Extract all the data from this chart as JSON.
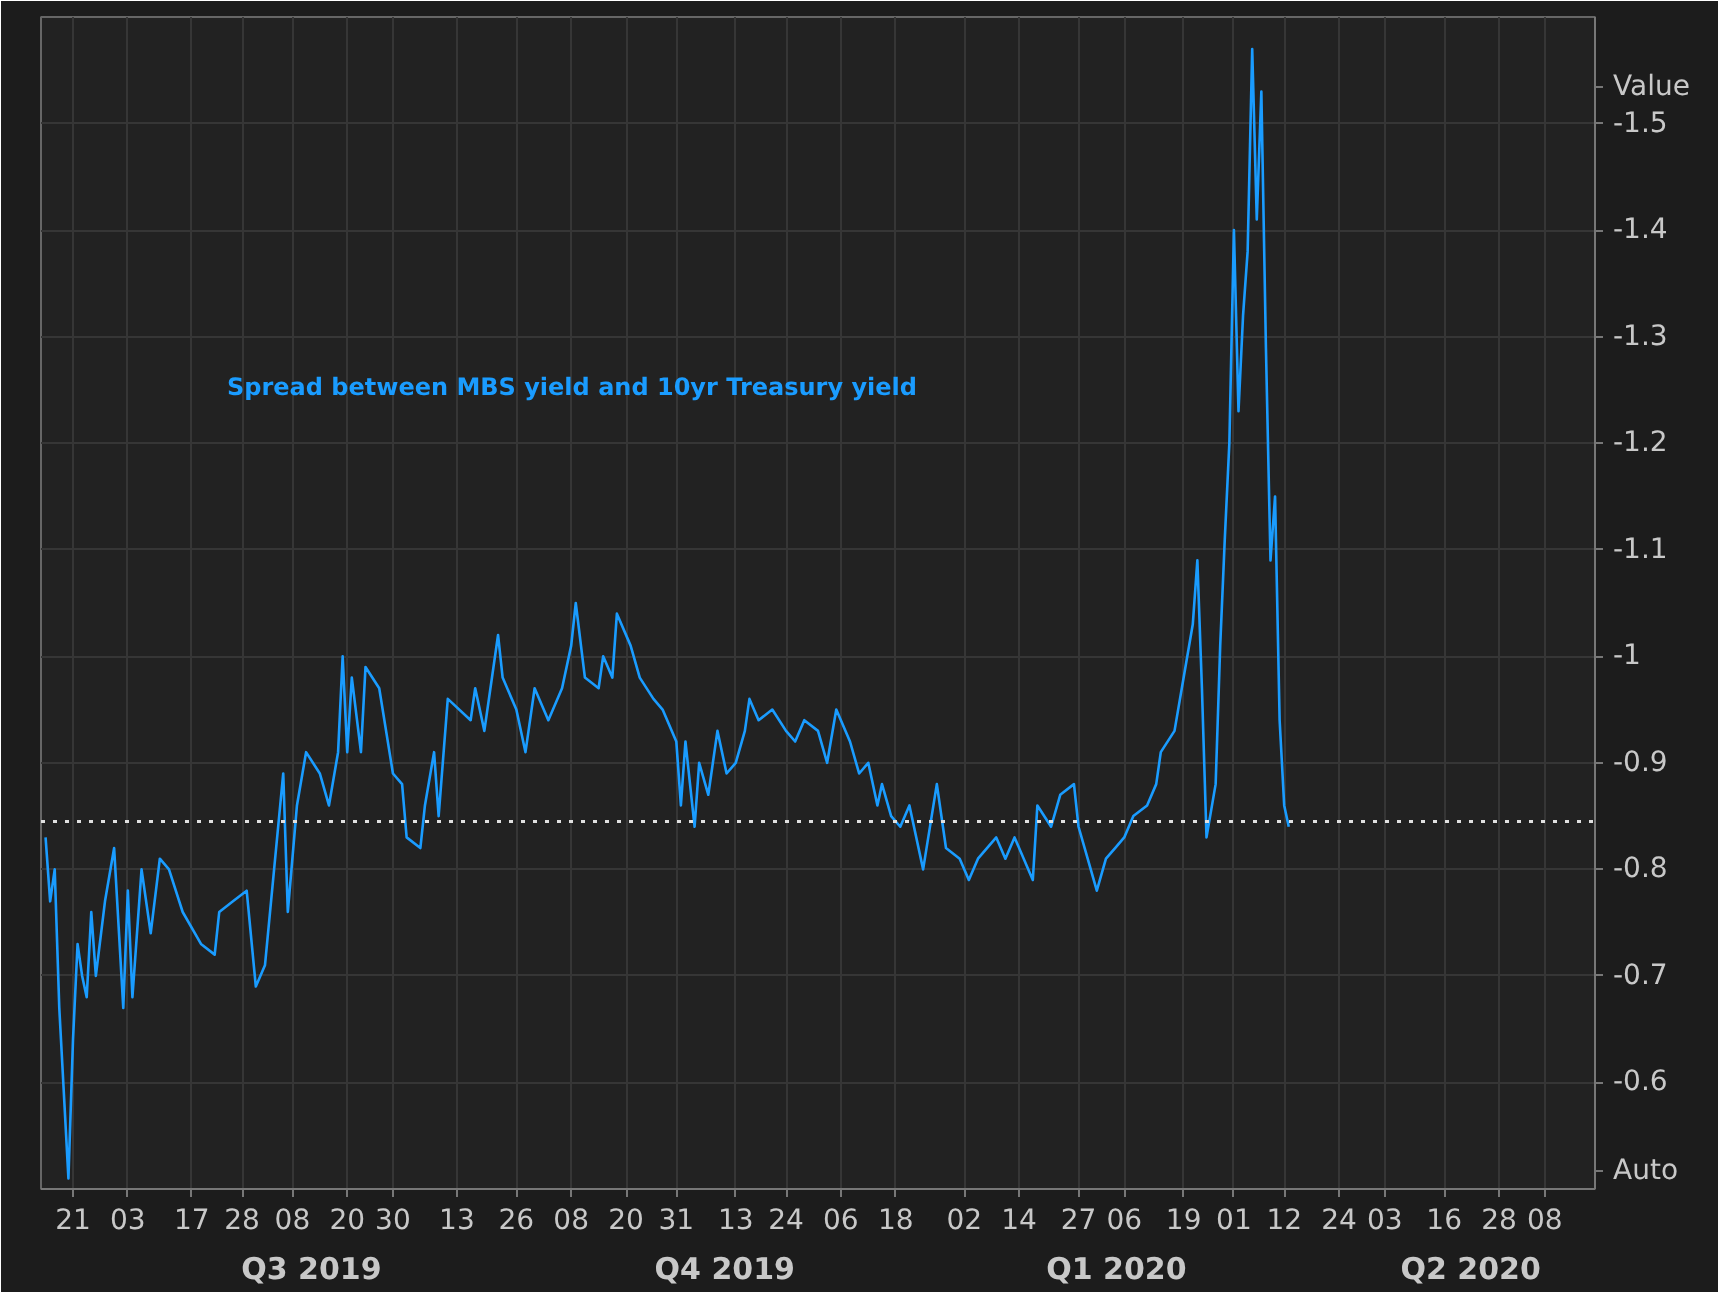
{
  "chart_data": {
    "type": "line",
    "ylabel": "Value",
    "xlim": [
      "2019-06-14",
      "2020-05-19"
    ],
    "ylim": [
      -0.5,
      -1.6
    ],
    "yticks": [
      -1.5,
      -1.4,
      -1.3,
      -1.2,
      -1.1,
      -1,
      -0.9,
      -0.8,
      -0.7,
      -0.6
    ],
    "xticks": [
      {
        "value": "2019-06-21",
        "label": "21"
      },
      {
        "value": "2019-07-03",
        "label": "03"
      },
      {
        "value": "2019-07-17",
        "label": "17"
      },
      {
        "value": "2019-07-28",
        "label": "28"
      },
      {
        "value": "2019-08-08",
        "label": "08"
      },
      {
        "value": "2019-08-20",
        "label": "20"
      },
      {
        "value": "2019-08-30",
        "label": "30"
      },
      {
        "value": "2019-09-13",
        "label": "13"
      },
      {
        "value": "2019-09-26",
        "label": "26"
      },
      {
        "value": "2019-10-08",
        "label": "08"
      },
      {
        "value": "2019-10-20",
        "label": "20"
      },
      {
        "value": "2019-10-31",
        "label": "31"
      },
      {
        "value": "2019-11-13",
        "label": "13"
      },
      {
        "value": "2019-11-24",
        "label": "24"
      },
      {
        "value": "2019-12-06",
        "label": "06"
      },
      {
        "value": "2019-12-18",
        "label": "18"
      },
      {
        "value": "2020-01-02",
        "label": "02"
      },
      {
        "value": "2020-01-14",
        "label": "14"
      },
      {
        "value": "2020-01-27",
        "label": "27"
      },
      {
        "value": "2020-02-06",
        "label": "06"
      },
      {
        "value": "2020-02-19",
        "label": "19"
      },
      {
        "value": "2020-03-01",
        "label": "01"
      },
      {
        "value": "2020-03-12",
        "label": "12"
      },
      {
        "value": "2020-03-24",
        "label": "24"
      },
      {
        "value": "2020-04-03",
        "label": "03"
      },
      {
        "value": "2020-04-16",
        "label": "16"
      },
      {
        "value": "2020-04-28",
        "label": "28"
      },
      {
        "value": "2020-05-08",
        "label": "08"
      }
    ],
    "grid": true,
    "ref_lines": [
      {
        "axis": "y",
        "value": -0.845,
        "color": "#e0e0e0",
        "line_style": "dotted"
      }
    ],
    "annotations": [
      "Q3 2019",
      "Q4 2019",
      "Q1 2020",
      "Q2 2020",
      "Auto"
    ],
    "series": [
      {
        "name": "Spread between MBS yield and 10yr Treasury yield",
        "color": "#1a9cff",
        "x": [
          "2019-06-15",
          "2019-06-16",
          "2019-06-17",
          "2019-06-18",
          "2019-06-19",
          "2019-06-20",
          "2019-06-21",
          "2019-06-22",
          "2019-06-23",
          "2019-06-24",
          "2019-06-25",
          "2019-06-26",
          "2019-06-28",
          "2019-06-30",
          "2019-07-02",
          "2019-07-03",
          "2019-07-04",
          "2019-07-06",
          "2019-07-08",
          "2019-07-10",
          "2019-07-12",
          "2019-07-15",
          "2019-07-19",
          "2019-07-22",
          "2019-07-23",
          "2019-07-26",
          "2019-07-29",
          "2019-07-31",
          "2019-08-02",
          "2019-08-04",
          "2019-08-06",
          "2019-08-07",
          "2019-08-09",
          "2019-08-11",
          "2019-08-14",
          "2019-08-16",
          "2019-08-18",
          "2019-08-19",
          "2019-08-20",
          "2019-08-21",
          "2019-08-23",
          "2019-08-24",
          "2019-08-27",
          "2019-08-30",
          "2019-09-01",
          "2019-09-02",
          "2019-09-05",
          "2019-09-06",
          "2019-09-08",
          "2019-09-09",
          "2019-09-11",
          "2019-09-16",
          "2019-09-17",
          "2019-09-19",
          "2019-09-22",
          "2019-09-23",
          "2019-09-26",
          "2019-09-28",
          "2019-09-30",
          "2019-10-03",
          "2019-10-06",
          "2019-10-08",
          "2019-10-09",
          "2019-10-11",
          "2019-10-14",
          "2019-10-15",
          "2019-10-17",
          "2019-10-18",
          "2019-10-21",
          "2019-10-23",
          "2019-10-26",
          "2019-10-28",
          "2019-10-31",
          "2019-11-01",
          "2019-11-02",
          "2019-11-04",
          "2019-11-05",
          "2019-11-07",
          "2019-11-09",
          "2019-11-11",
          "2019-11-13",
          "2019-11-15",
          "2019-11-16",
          "2019-11-18",
          "2019-11-21",
          "2019-11-24",
          "2019-11-26",
          "2019-11-28",
          "2019-12-01",
          "2019-12-03",
          "2019-12-05",
          "2019-12-08",
          "2019-12-10",
          "2019-12-12",
          "2019-12-14",
          "2019-12-15",
          "2019-12-17",
          "2019-12-19",
          "2019-12-21",
          "2019-12-24",
          "2019-12-27",
          "2019-12-29",
          "2020-01-01",
          "2020-01-03",
          "2020-01-05",
          "2020-01-09",
          "2020-01-11",
          "2020-01-13",
          "2020-01-17",
          "2020-01-18",
          "2020-01-21",
          "2020-01-23",
          "2020-01-26",
          "2020-01-27",
          "2020-01-29",
          "2020-01-31",
          "2020-02-02",
          "2020-02-04",
          "2020-02-06",
          "2020-02-08",
          "2020-02-11",
          "2020-02-13",
          "2020-02-14",
          "2020-02-17",
          "2020-02-19",
          "2020-02-21",
          "2020-02-22",
          "2020-02-23",
          "2020-02-24",
          "2020-02-26",
          "2020-02-27",
          "2020-02-28",
          "2020-02-29",
          "2020-03-01",
          "2020-03-02",
          "2020-03-03",
          "2020-03-04",
          "2020-03-05",
          "2020-03-06",
          "2020-03-07",
          "2020-03-08",
          "2020-03-09",
          "2020-03-10",
          "2020-03-11",
          "2020-03-12",
          "2020-03-13"
        ],
        "values": [
          -0.83,
          -0.77,
          -0.8,
          -0.67,
          -0.59,
          -0.51,
          -0.64,
          -0.73,
          -0.7,
          -0.68,
          -0.76,
          -0.7,
          -0.77,
          -0.82,
          -0.67,
          -0.78,
          -0.68,
          -0.8,
          -0.74,
          -0.81,
          -0.8,
          -0.76,
          -0.73,
          -0.72,
          -0.76,
          -0.77,
          -0.78,
          -0.69,
          -0.71,
          -0.8,
          -0.89,
          -0.76,
          -0.86,
          -0.91,
          -0.89,
          -0.86,
          -0.91,
          -1.0,
          -0.91,
          -0.98,
          -0.91,
          -0.99,
          -0.97,
          -0.89,
          -0.88,
          -0.83,
          -0.82,
          -0.86,
          -0.91,
          -0.85,
          -0.96,
          -0.94,
          -0.97,
          -0.93,
          -1.02,
          -0.98,
          -0.95,
          -0.91,
          -0.97,
          -0.94,
          -0.97,
          -1.01,
          -1.05,
          -0.98,
          -0.97,
          -1.0,
          -0.98,
          -1.04,
          -1.01,
          -0.98,
          -0.96,
          -0.95,
          -0.92,
          -0.86,
          -0.92,
          -0.84,
          -0.9,
          -0.87,
          -0.93,
          -0.89,
          -0.9,
          -0.93,
          -0.96,
          -0.94,
          -0.95,
          -0.93,
          -0.92,
          -0.94,
          -0.93,
          -0.9,
          -0.95,
          -0.92,
          -0.89,
          -0.9,
          -0.86,
          -0.88,
          -0.85,
          -0.84,
          -0.86,
          -0.8,
          -0.88,
          -0.82,
          -0.81,
          -0.79,
          -0.81,
          -0.83,
          -0.81,
          -0.83,
          -0.79,
          -0.86,
          -0.84,
          -0.87,
          -0.88,
          -0.84,
          -0.81,
          -0.78,
          -0.81,
          -0.82,
          -0.83,
          -0.85,
          -0.86,
          -0.88,
          -0.91,
          -0.93,
          -0.98,
          -1.03,
          -1.09,
          -0.97,
          -0.83,
          -0.88,
          -1.01,
          -1.11,
          -1.2,
          -1.4,
          -1.23,
          -1.32,
          -1.38,
          -1.57,
          -1.41,
          -1.53,
          -1.29,
          -1.09,
          -1.15,
          -0.94,
          -0.86,
          -0.84
        ]
      }
    ]
  }
}
